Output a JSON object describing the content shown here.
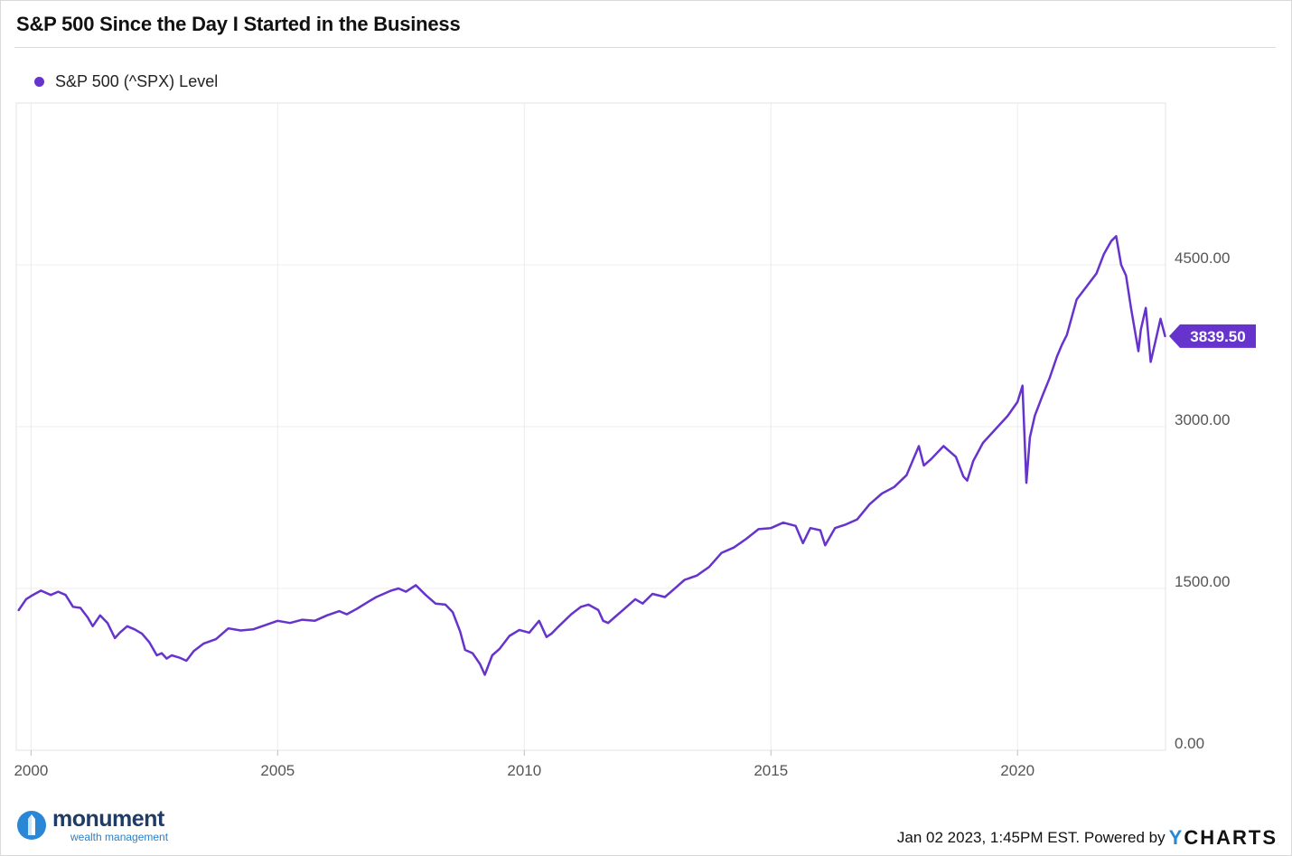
{
  "title": "S&P 500 Since the Day I Started in the Business",
  "footer": {
    "brand_name": "monument",
    "brand_sub": "wealth management",
    "timestamp_text": "Jan 02 2023, 1:45PM EST. Powered by",
    "ycharts_y": "Y",
    "ycharts_rest": "CHARTS"
  },
  "colors": {
    "series": "#6633cc",
    "grid": "#ececec",
    "axis_text": "#555555",
    "brand": "#1f3b66",
    "brand_accent": "#2a87d6"
  },
  "chart_data": {
    "type": "line",
    "title": "S&P 500 Since the Day I Started in the Business",
    "xlabel": "",
    "ylabel": "",
    "x_ticks": [
      "2000",
      "2005",
      "2010",
      "2015",
      "2020"
    ],
    "y_ticks": [
      "0.00",
      "1500.00",
      "3000.00",
      "4500.00"
    ],
    "ylim": [
      0,
      6000
    ],
    "xlim": [
      1999.7,
      2023.0
    ],
    "grid": true,
    "legend": "top-left",
    "last_value_label": "3839.50",
    "series": [
      {
        "name": "S&P 500 (^SPX) Level",
        "x": [
          1999.75,
          1999.9,
          2000.0,
          2000.2,
          2000.4,
          2000.55,
          2000.7,
          2000.85,
          2001.0,
          2001.15,
          2001.25,
          2001.4,
          2001.55,
          2001.7,
          2001.8,
          2001.95,
          2002.1,
          2002.25,
          2002.4,
          2002.55,
          2002.65,
          2002.75,
          2002.85,
          2003.0,
          2003.15,
          2003.3,
          2003.5,
          2003.75,
          2004.0,
          2004.25,
          2004.5,
          2004.75,
          2005.0,
          2005.25,
          2005.5,
          2005.75,
          2006.0,
          2006.25,
          2006.4,
          2006.6,
          2006.85,
          2007.0,
          2007.3,
          2007.45,
          2007.6,
          2007.8,
          2008.0,
          2008.2,
          2008.4,
          2008.55,
          2008.7,
          2008.8,
          2008.95,
          2009.1,
          2009.2,
          2009.35,
          2009.5,
          2009.7,
          2009.9,
          2010.1,
          2010.3,
          2010.45,
          2010.55,
          2010.7,
          2010.95,
          2011.15,
          2011.3,
          2011.5,
          2011.6,
          2011.7,
          2011.85,
          2012.0,
          2012.25,
          2012.4,
          2012.6,
          2012.85,
          2013.0,
          2013.25,
          2013.5,
          2013.75,
          2014.0,
          2014.25,
          2014.5,
          2014.75,
          2015.0,
          2015.25,
          2015.5,
          2015.65,
          2015.8,
          2016.0,
          2016.1,
          2016.3,
          2016.5,
          2016.75,
          2017.0,
          2017.25,
          2017.5,
          2017.75,
          2018.0,
          2018.1,
          2018.25,
          2018.5,
          2018.75,
          2018.9,
          2018.98,
          2019.1,
          2019.3,
          2019.4,
          2019.6,
          2019.8,
          2020.0,
          2020.1,
          2020.18,
          2020.25,
          2020.35,
          2020.5,
          2020.65,
          2020.8,
          2020.9,
          2021.0,
          2021.2,
          2021.4,
          2021.6,
          2021.75,
          2021.9,
          2022.0,
          2022.1,
          2022.2,
          2022.3,
          2022.45,
          2022.5,
          2022.6,
          2022.7,
          2022.8,
          2022.9,
          2022.99
        ],
        "values": [
          1300,
          1400,
          1430,
          1480,
          1440,
          1470,
          1440,
          1330,
          1320,
          1230,
          1150,
          1250,
          1180,
          1040,
          1090,
          1150,
          1120,
          1080,
          1000,
          880,
          900,
          850,
          880,
          860,
          830,
          920,
          990,
          1030,
          1130,
          1110,
          1120,
          1160,
          1200,
          1180,
          1210,
          1200,
          1250,
          1290,
          1260,
          1310,
          1380,
          1420,
          1480,
          1500,
          1470,
          1530,
          1440,
          1360,
          1350,
          1280,
          1100,
          930,
          900,
          800,
          700,
          880,
          940,
          1060,
          1115,
          1090,
          1200,
          1050,
          1080,
          1150,
          1260,
          1330,
          1350,
          1300,
          1200,
          1180,
          1240,
          1300,
          1400,
          1360,
          1450,
          1420,
          1480,
          1580,
          1620,
          1700,
          1830,
          1880,
          1960,
          2050,
          2060,
          2110,
          2080,
          1920,
          2060,
          2040,
          1900,
          2060,
          2090,
          2140,
          2280,
          2380,
          2440,
          2550,
          2820,
          2640,
          2700,
          2820,
          2720,
          2540,
          2500,
          2680,
          2850,
          2900,
          3000,
          3100,
          3230,
          3380,
          2480,
          2900,
          3100,
          3280,
          3450,
          3650,
          3760,
          3850,
          4180,
          4300,
          4420,
          4600,
          4720,
          4766,
          4500,
          4400,
          4100,
          3700,
          3900,
          4100,
          3600,
          3800,
          4000,
          3839.5
        ]
      }
    ]
  }
}
